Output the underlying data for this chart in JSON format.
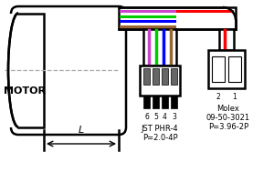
{
  "bg_color": "#ffffff",
  "wire_colors_jst": [
    "#cc44cc",
    "#00cc00",
    "#0000ff",
    "#996633"
  ],
  "wire_color_molex": "#ff0000",
  "jst_label_pins": [
    "6",
    "5",
    "4",
    "3"
  ],
  "molex_label_pins": [
    "2",
    "1"
  ],
  "jst_label1": "JST PHR-4",
  "jst_label2": "P=2.0-4P",
  "molex_label1": "Molex",
  "molex_label2": "09-50-3021",
  "molex_label3": "P=3.96-2P",
  "motor_label": "MOTOR",
  "dim_label": "L",
  "figw": 3.0,
  "figh": 1.89,
  "dpi": 100
}
